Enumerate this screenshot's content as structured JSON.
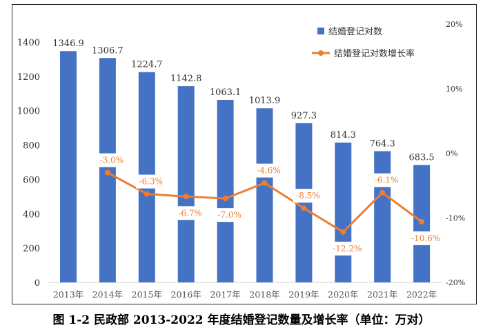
{
  "chart_data": {
    "type": "bar+line",
    "categories": [
      "2013年",
      "2014年",
      "2015年",
      "2016年",
      "2017年",
      "2018年",
      "2019年",
      "2020年",
      "2021年",
      "2022年"
    ],
    "series": [
      {
        "name": "结婚登记对数",
        "type": "bar",
        "axis": "left",
        "color": "#4472C4",
        "values": [
          1346.9,
          1306.7,
          1224.7,
          1142.8,
          1063.1,
          1013.9,
          927.3,
          814.3,
          764.3,
          683.5
        ],
        "labels": [
          "1346.9",
          "1306.7",
          "1224.7",
          "1142.8",
          "1063.1",
          "1013.9",
          "927.3",
          "814.3",
          "764.3",
          "683.5"
        ]
      },
      {
        "name": "结婚登记对数增长率",
        "type": "line",
        "axis": "right",
        "color": "#ED7D31",
        "values": [
          null,
          -3.0,
          -6.3,
          -6.7,
          -7.0,
          -4.6,
          -8.5,
          -12.2,
          -6.1,
          -10.6
        ],
        "labels": [
          "",
          "-3.0%",
          "-6.3%",
          "-6.7%",
          "-7.0%",
          "-4.6%",
          "-8.5%",
          "-12.2%",
          "-6.1%",
          "-10.6%"
        ]
      }
    ],
    "left_axis": {
      "range": [
        0,
        1400
      ],
      "ticks": [
        "0",
        "200",
        "400",
        "600",
        "800",
        "1000",
        "1200",
        "1400"
      ]
    },
    "right_axis": {
      "range": [
        -20,
        20
      ],
      "unit": "%",
      "ticks": [
        "-20%",
        "-10%",
        "0%",
        "10%",
        "20%"
      ]
    },
    "legend": "top-right",
    "grid": false
  },
  "caption": "图 1-2  民政部 2013-2022 年度结婚登记数量及增长率（单位：万对）"
}
